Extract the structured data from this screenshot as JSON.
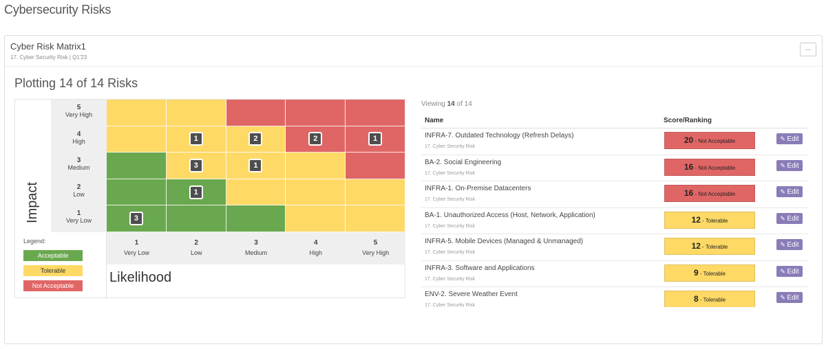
{
  "page": {
    "title": "Cybersecurity Risks"
  },
  "panel": {
    "title": "Cyber Risk Matrix1",
    "subtitle": "17. Cyber Security Risk | Q1'23",
    "menu_label": "..."
  },
  "plot_title": "Plotting 14 of 14 Risks",
  "colors": {
    "acceptable": "#6aa84f",
    "tolerable": "#fed966",
    "not_acceptable": "#e06666",
    "edit": "#8a7cb8"
  },
  "matrix": {
    "y_axis_label": "Impact",
    "x_axis_label": "Likelihood",
    "impact_levels": [
      {
        "num": "5",
        "label": "Very High"
      },
      {
        "num": "4",
        "label": "High"
      },
      {
        "num": "3",
        "label": "Medium"
      },
      {
        "num": "2",
        "label": "Low"
      },
      {
        "num": "1",
        "label": "Very Low"
      }
    ],
    "likelihood_levels": [
      {
        "num": "1",
        "label": "Very Low"
      },
      {
        "num": "2",
        "label": "Low"
      },
      {
        "num": "3",
        "label": "Medium"
      },
      {
        "num": "4",
        "label": "High"
      },
      {
        "num": "5",
        "label": "Very High"
      }
    ],
    "grid": [
      [
        "tolerable",
        "tolerable",
        "not_acceptable",
        "not_acceptable",
        "not_acceptable"
      ],
      [
        "tolerable",
        "tolerable",
        "tolerable",
        "not_acceptable",
        "not_acceptable"
      ],
      [
        "acceptable",
        "tolerable",
        "tolerable",
        "tolerable",
        "not_acceptable"
      ],
      [
        "acceptable",
        "acceptable",
        "tolerable",
        "tolerable",
        "tolerable"
      ],
      [
        "acceptable",
        "acceptable",
        "acceptable",
        "tolerable",
        "tolerable"
      ]
    ],
    "counts": [
      [
        "",
        "",
        "",
        "",
        ""
      ],
      [
        "",
        "1",
        "2",
        "2",
        "1"
      ],
      [
        "",
        "3",
        "1",
        "",
        ""
      ],
      [
        "",
        "1",
        "",
        "",
        ""
      ],
      [
        "3",
        "",
        "",
        "",
        ""
      ]
    ],
    "legend": {
      "title": "Legend:",
      "acceptable": "Acceptable",
      "tolerable": "Tolerable",
      "not_acceptable": "Not Acceptable"
    }
  },
  "list": {
    "viewing_prefix": "Viewing",
    "viewing_count": "14",
    "viewing_suffix": "of 14",
    "col_name": "Name",
    "col_score": "Score/Ranking",
    "edit_label": "Edit",
    "rows": [
      {
        "name": "INFRA-7. Outdated Technology (Refresh Delays)",
        "category": "17. Cyber Security Risk",
        "score": "20",
        "ranking": "- Not Acceptable",
        "level": "not_acceptable"
      },
      {
        "name": "BA-2. Social Engineering",
        "category": "17. Cyber Security Risk",
        "score": "16",
        "ranking": "- Not Acceptable",
        "level": "not_acceptable"
      },
      {
        "name": "INFRA-1. On-Premise Datacenters",
        "category": "17. Cyber Security Risk",
        "score": "16",
        "ranking": "- Not Acceptable",
        "level": "not_acceptable"
      },
      {
        "name": "BA-1. Unauthorized Access (Host, Network, Application)",
        "category": "17. Cyber Security Risk",
        "score": "12",
        "ranking": "- Tolerable",
        "level": "tolerable"
      },
      {
        "name": "INFRA-5. Mobile Devices (Managed & Unmanaged)",
        "category": "17. Cyber Security Risk",
        "score": "12",
        "ranking": "- Tolerable",
        "level": "tolerable"
      },
      {
        "name": "INFRA-3. Software and Applications",
        "category": "17. Cyber Security Risk",
        "score": "9",
        "ranking": "- Tolerable",
        "level": "tolerable"
      },
      {
        "name": "ENV-2. Severe Weather Event",
        "category": "17. Cyber Security Risk",
        "score": "8",
        "ranking": "- Tolerable",
        "level": "tolerable"
      }
    ]
  }
}
